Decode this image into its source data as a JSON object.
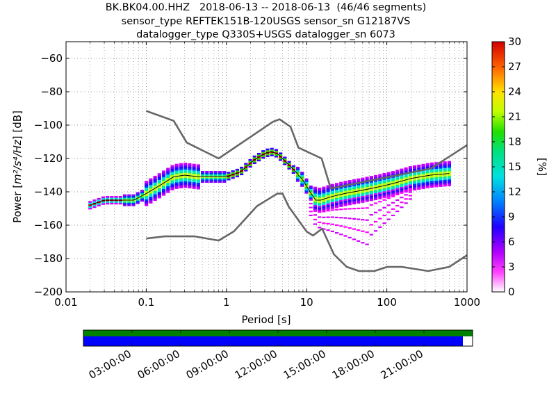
{
  "title_lines": [
    "BK.BK04.00.HHZ   2018-06-13 -- 2018-06-13  (46/46 segments)",
    "sensor_type REFTEK151B-120USGS sensor_sn G12187VS",
    "datalogger_type Q330S+USGS datalogger_sn 6073"
  ],
  "colors": {
    "noise_model": "#666666",
    "mean_line": "#000000",
    "timeline_top": "#008000",
    "timeline_bottom": "#0000ff"
  },
  "chart_data": {
    "type": "heatmap",
    "title": "BK.BK04.00.HHZ   2018-06-13 -- 2018-06-13  (46/46 segments)",
    "xlabel": "Period [s]",
    "ylabel_prefix": "Power [",
    "ylabel_unit": "m²/s⁴/Hz",
    "ylabel_suffix": "] [dB]",
    "xscale": "log",
    "xlim": [
      0.01,
      1000
    ],
    "ylim": [
      -200,
      -50
    ],
    "x_ticks": [
      0.01,
      0.1,
      1,
      10,
      100,
      1000
    ],
    "x_tick_labels": [
      "0.01",
      "0.1",
      "1",
      "10",
      "100",
      "1000"
    ],
    "y_ticks": [
      -200,
      -180,
      -160,
      -140,
      -120,
      -100,
      -80,
      -60
    ],
    "y_tick_labels": [
      "−200",
      "−180",
      "−160",
      "−140",
      "−120",
      "−100",
      "−80",
      "−60"
    ],
    "grid": true,
    "colorbar": {
      "label": "[%]",
      "range": [
        0,
        30
      ],
      "ticks": [
        0,
        3,
        6,
        9,
        12,
        15,
        18,
        21,
        24,
        27,
        30
      ],
      "tick_labels": [
        "0",
        "3",
        "6",
        "9",
        "12",
        "15",
        "18",
        "21",
        "24",
        "27",
        "30"
      ]
    },
    "noise_model_high": {
      "period": [
        0.1,
        0.22,
        0.32,
        0.8,
        3.8,
        4.6,
        6.3,
        7.9,
        15.4,
        20,
        354.8,
        1000
      ],
      "power": [
        -91.5,
        -97.4,
        -110.5,
        -120,
        -98,
        -96.5,
        -101,
        -113.5,
        -120,
        -138,
        -126,
        -112
      ]
    },
    "noise_model_low": {
      "period": [
        0.1,
        0.17,
        0.4,
        0.8,
        1.24,
        2.4,
        4.3,
        5,
        6,
        10,
        12,
        15.6,
        21.9,
        31.6,
        45,
        70,
        101,
        154,
        328,
        600,
        1000
      ],
      "power": [
        -168,
        -166.7,
        -166.7,
        -169.2,
        -163.7,
        -148.6,
        -141.1,
        -141.1,
        -149,
        -163.8,
        -166.2,
        -162.1,
        -177.5,
        -185,
        -187.5,
        -187.5,
        -185,
        -185,
        -187.5,
        -185,
        -178
      ]
    },
    "mean_psd": {
      "period": [
        0.02,
        0.03,
        0.05,
        0.07,
        0.1,
        0.15,
        0.22,
        0.3,
        0.45,
        0.7,
        1,
        1.5,
        2.2,
        3,
        3.6,
        4.3,
        5.5,
        7,
        9,
        11,
        13,
        15,
        20,
        30,
        50,
        80,
        120,
        200,
        350,
        600
      ],
      "power": [
        -148,
        -145,
        -145,
        -145,
        -141,
        -136,
        -131,
        -130,
        -131,
        -131,
        -131,
        -128,
        -121,
        -117,
        -116,
        -117,
        -122,
        -127,
        -133,
        -140,
        -145,
        -145,
        -143,
        -141,
        -139,
        -137,
        -135,
        -132,
        -130,
        -129
      ]
    },
    "timeline": {
      "tick_labels": [
        "03:00:00",
        "06:00:00",
        "09:00:00",
        "12:00:00",
        "15:00:00",
        "18:00:00",
        "21:00:00"
      ],
      "hours": [
        3,
        6,
        9,
        12,
        15,
        18,
        21
      ],
      "range_hours": [
        0,
        24
      ],
      "data_coverage_end_hour": 23.4
    }
  }
}
